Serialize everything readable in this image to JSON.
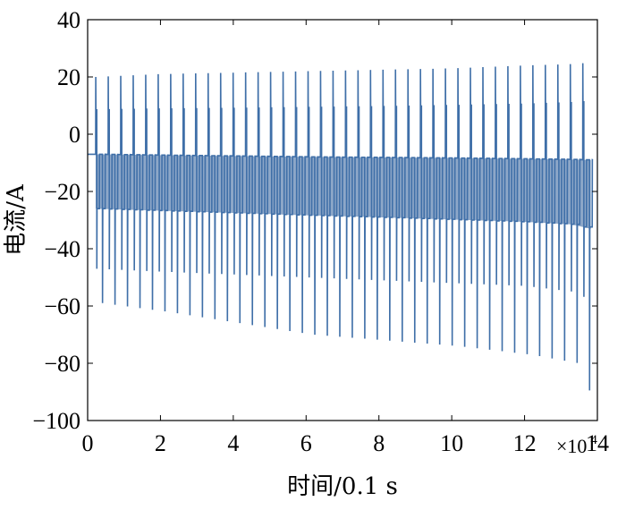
{
  "chart_data": {
    "type": "line",
    "title": "",
    "xlabel": "时间/0.1 s",
    "ylabel": "电流/A",
    "x_multiplier_label": "×10",
    "x_multiplier_exponent": "4",
    "xlim": [
      0,
      14
    ],
    "ylim": [
      -100,
      40
    ],
    "x_ticks": [
      0,
      2,
      4,
      6,
      8,
      10,
      12,
      14
    ],
    "y_ticks": [
      40,
      20,
      0,
      -20,
      -40,
      -60,
      -80,
      -100
    ],
    "x_tick_labels": [
      "0",
      "2",
      "4",
      "6",
      "8",
      "10",
      "12",
      "14"
    ],
    "y_tick_labels": [
      "40",
      "20",
      "0",
      "−20",
      "−40",
      "−60",
      "−80",
      "−100"
    ],
    "grid": false,
    "legend": "none",
    "series_color": "#3f6fa8",
    "series_dark_color": "#2f5e9b",
    "pulse_period_x": 0.343,
    "pulse_count": 40,
    "pulse_start_x": 0.22,
    "envelope": {
      "x": [
        0.22,
        2,
        4,
        6,
        8,
        10,
        12,
        13.3,
        13.8
      ],
      "upper_peak": [
        20,
        21,
        21.5,
        22,
        22.5,
        23,
        24,
        24.5,
        25
      ],
      "upper_plateau": [
        8.5,
        8.8,
        9,
        9.3,
        9.6,
        10,
        10.5,
        11,
        11.5
      ],
      "base_high": [
        -7,
        -7.3,
        -7.6,
        -7.9,
        -8.1,
        -8.3,
        -8.6,
        -8.8,
        -9
      ],
      "base_low": [
        -26,
        -26.7,
        -27.5,
        -28.3,
        -29,
        -29.8,
        -30.6,
        -31.5,
        -33
      ],
      "mid_dip": [
        -47,
        -48,
        -49,
        -50,
        -51,
        -52,
        -53,
        -55,
        -58
      ],
      "lower_dip": [
        -59,
        -62,
        -66,
        -70,
        -72,
        -74,
        -77,
        -80,
        -96
      ]
    }
  }
}
